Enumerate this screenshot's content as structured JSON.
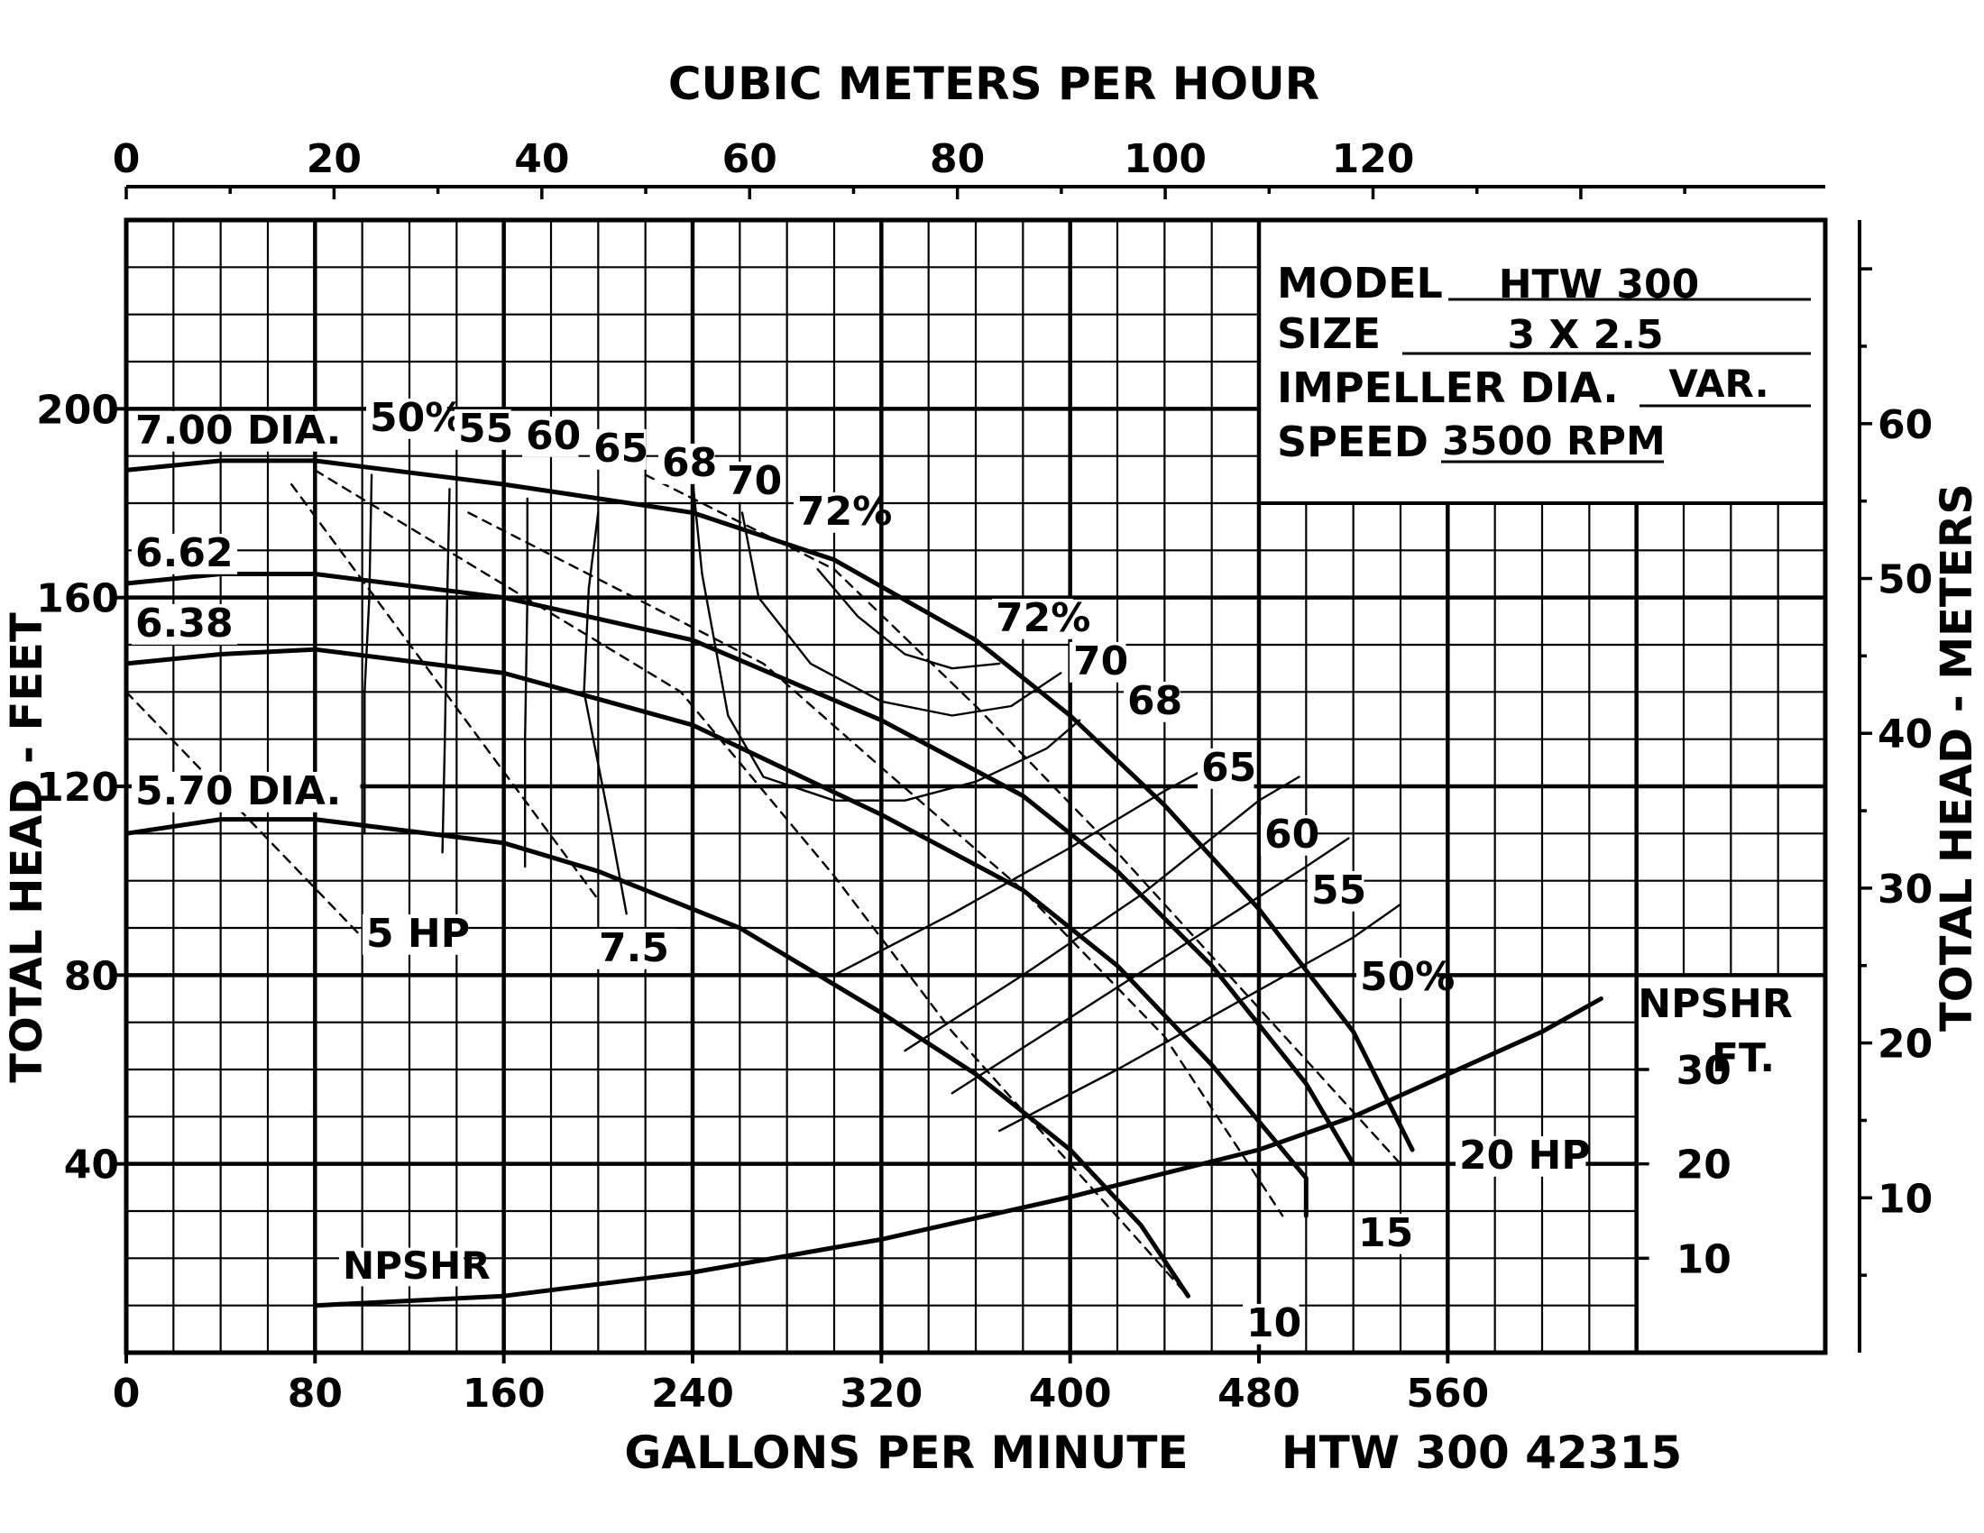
{
  "chart_data": {
    "type": "line",
    "title": "",
    "xlabel": "GALLONS PER MINUTE",
    "x2label": "CUBIC METERS PER HOUR",
    "ylabel": "TOTAL HEAD - FEET",
    "y2label": "TOTAL HEAD - METERS",
    "xlim": [
      0,
      720
    ],
    "ylim": [
      0,
      240
    ],
    "x_ticks": [
      "0",
      "80",
      "160",
      "240",
      "320",
      "400",
      "480",
      "560"
    ],
    "x2_ticks": [
      "0",
      "20",
      "40",
      "60",
      "80",
      "100",
      "120"
    ],
    "y_ticks": [
      "40",
      "80",
      "120",
      "160",
      "200"
    ],
    "y2_ticks": [
      "10",
      "20",
      "30",
      "40",
      "50",
      "60"
    ],
    "npsh_ticks": [
      "10",
      "20",
      "30"
    ],
    "npsh_unit": [
      "NPSHR",
      "FT."
    ],
    "grid": true,
    "drawing_number": "HTW 300 42315",
    "spec_box": {
      "model_label": "MODEL",
      "model_value": "HTW 300",
      "size_label": "SIZE",
      "size_value": "3 X 2.5",
      "impeller_label": "IMPELLER DIA.",
      "impeller_value": "VAR.",
      "speed_label": "SPEED",
      "speed_value": "3500 RPM"
    },
    "head_curves": [
      {
        "label": "7.00 DIA.",
        "points": [
          [
            0,
            187
          ],
          [
            40,
            189
          ],
          [
            80,
            189
          ],
          [
            160,
            184
          ],
          [
            240,
            178
          ],
          [
            300,
            168
          ],
          [
            360,
            151
          ],
          [
            400,
            135
          ],
          [
            440,
            116
          ],
          [
            480,
            94
          ],
          [
            520,
            68
          ],
          [
            545,
            43
          ]
        ]
      },
      {
        "label": "6.62",
        "points": [
          [
            0,
            163
          ],
          [
            40,
            165
          ],
          [
            80,
            165
          ],
          [
            160,
            160
          ],
          [
            240,
            151
          ],
          [
            320,
            134
          ],
          [
            380,
            118
          ],
          [
            420,
            102
          ],
          [
            460,
            82
          ],
          [
            500,
            57
          ],
          [
            520,
            40
          ]
        ]
      },
      {
        "label": "6.38",
        "points": [
          [
            0,
            146
          ],
          [
            40,
            148
          ],
          [
            80,
            149
          ],
          [
            160,
            144
          ],
          [
            240,
            133
          ],
          [
            320,
            114
          ],
          [
            380,
            98
          ],
          [
            420,
            82
          ],
          [
            460,
            61
          ],
          [
            500,
            37
          ],
          [
            500,
            29
          ]
        ]
      },
      {
        "label": "5.70 DIA.",
        "points": [
          [
            0,
            110
          ],
          [
            40,
            113
          ],
          [
            80,
            113
          ],
          [
            160,
            108
          ],
          [
            200,
            102
          ],
          [
            260,
            90
          ],
          [
            320,
            72
          ],
          [
            360,
            59
          ],
          [
            400,
            43
          ],
          [
            430,
            27
          ],
          [
            450,
            12
          ]
        ]
      }
    ],
    "npshr": {
      "label": "NPSHR",
      "points": [
        [
          80,
          10
        ],
        [
          160,
          12
        ],
        [
          240,
          17
        ],
        [
          320,
          24
        ],
        [
          400,
          33
        ],
        [
          480,
          43
        ],
        [
          520,
          50
        ],
        [
          560,
          59
        ],
        [
          600,
          68
        ],
        [
          625,
          75
        ]
      ]
    },
    "efficiency_curves": [
      {
        "label": "50%",
        "points": [
          [
            101,
            110
          ],
          [
            101,
            140
          ],
          [
            103,
            160
          ],
          [
            104,
            186
          ]
        ]
      },
      {
        "label": "55",
        "points": [
          [
            134,
            106
          ],
          [
            135,
            130
          ],
          [
            136,
            160
          ],
          [
            137,
            183
          ]
        ]
      },
      {
        "label": "60",
        "points": [
          [
            169,
            103
          ],
          [
            169,
            130
          ],
          [
            170,
            160
          ],
          [
            170,
            181
          ]
        ]
      },
      {
        "label": "65",
        "points": [
          [
            212,
            93
          ],
          [
            205,
            112
          ],
          [
            194,
            140
          ],
          [
            196,
            162
          ],
          [
            200,
            178
          ]
        ]
      },
      {
        "label": "68",
        "points": [
          [
            240,
            185
          ],
          [
            244,
            165
          ],
          [
            255,
            135
          ],
          [
            270,
            122
          ],
          [
            300,
            117
          ],
          [
            330,
            117
          ],
          [
            360,
            121
          ],
          [
            390,
            128
          ],
          [
            404,
            134
          ]
        ]
      },
      {
        "label": "70",
        "points": [
          [
            261,
            178
          ],
          [
            268,
            160
          ],
          [
            290,
            146
          ],
          [
            320,
            138
          ],
          [
            350,
            135
          ],
          [
            375,
            137
          ],
          [
            396,
            144
          ]
        ]
      },
      {
        "label": "72%",
        "points": [
          [
            293,
            166
          ],
          [
            310,
            156
          ],
          [
            330,
            148
          ],
          [
            350,
            145
          ],
          [
            370,
            146
          ]
        ]
      },
      {
        "label": "65",
        "points": [
          [
            300,
            80
          ],
          [
            350,
            93
          ],
          [
            400,
            107
          ],
          [
            440,
            119
          ],
          [
            462,
            125
          ]
        ]
      },
      {
        "label": "60",
        "points": [
          [
            330,
            64
          ],
          [
            380,
            80
          ],
          [
            430,
            97
          ],
          [
            480,
            117
          ],
          [
            497,
            122
          ]
        ]
      },
      {
        "label": "55",
        "points": [
          [
            350,
            55
          ],
          [
            400,
            71
          ],
          [
            450,
            87
          ],
          [
            500,
            103
          ],
          [
            518,
            109
          ]
        ]
      },
      {
        "label": "50%",
        "points": [
          [
            370,
            47
          ],
          [
            420,
            60
          ],
          [
            470,
            74
          ],
          [
            520,
            88
          ],
          [
            540,
            95
          ]
        ]
      }
    ],
    "hp_lines": [
      {
        "label": "5 HP",
        "points": [
          [
            0,
            140
          ],
          [
            100,
            88
          ]
        ]
      },
      {
        "label": "7.5",
        "points": [
          [
            70,
            184
          ],
          [
            200,
            96
          ]
        ]
      },
      {
        "label": "10",
        "points": [
          [
            80,
            187
          ],
          [
            235,
            140
          ],
          [
            300,
            101
          ],
          [
            350,
            68
          ],
          [
            450,
            12
          ]
        ]
      },
      {
        "label": "15",
        "points": [
          [
            145,
            178
          ],
          [
            270,
            146
          ],
          [
            320,
            124
          ],
          [
            380,
            98
          ],
          [
            440,
            67
          ],
          [
            490,
            29
          ]
        ]
      },
      {
        "label": "20 HP",
        "points": [
          [
            220,
            186
          ],
          [
            300,
            166
          ],
          [
            360,
            137
          ],
          [
            420,
            106
          ],
          [
            480,
            73
          ],
          [
            540,
            40
          ]
        ]
      }
    ]
  }
}
